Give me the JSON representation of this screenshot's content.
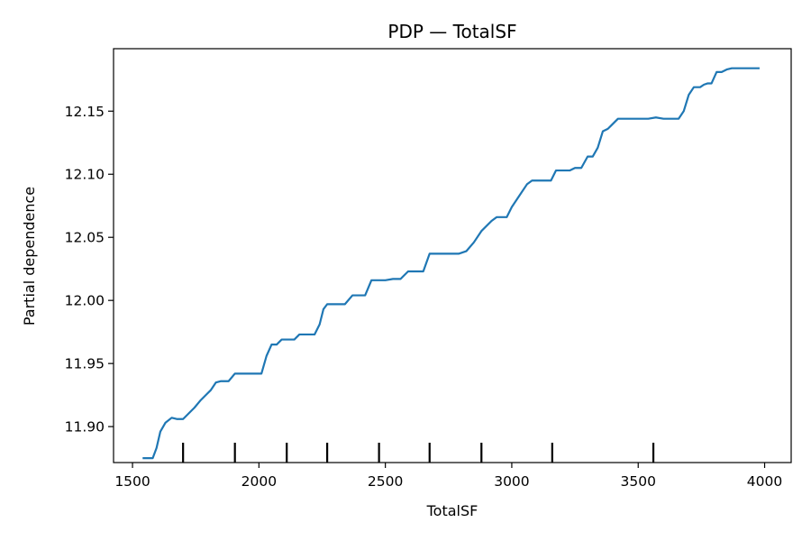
{
  "chart_data": {
    "type": "line",
    "title": "PDP — TotalSF",
    "xlabel": "TotalSF",
    "ylabel": "Partial dependence",
    "xlim": [
      1425,
      4105
    ],
    "ylim": [
      11.8715,
      12.1995
    ],
    "xticks": [
      1500,
      2000,
      2500,
      3000,
      3500,
      4000
    ],
    "xtick_labels": [
      "1500",
      "2000",
      "2500",
      "3000",
      "3500",
      "4000"
    ],
    "yticks": [
      11.9,
      11.95,
      12.0,
      12.05,
      12.1,
      12.15
    ],
    "ytick_labels": [
      "11.90",
      "11.95",
      "12.00",
      "12.05",
      "12.10",
      "12.15"
    ],
    "grid": false,
    "line_color": "#1f77b4",
    "series": [
      {
        "x": [
          1540,
          1560,
          1580,
          1595,
          1610,
          1630,
          1655,
          1675,
          1700,
          1720,
          1745,
          1770,
          1790,
          1810,
          1830,
          1850,
          1870,
          1880,
          1905,
          1925,
          1950,
          1980,
          2010,
          2030,
          2050,
          2070,
          2090,
          2110,
          2140,
          2160,
          2180,
          2200,
          2220,
          2240,
          2255,
          2270,
          2290,
          2310,
          2340,
          2370,
          2390,
          2420,
          2445,
          2470,
          2500,
          2530,
          2560,
          2590,
          2620,
          2650,
          2675,
          2690,
          2700,
          2730,
          2760,
          2790,
          2820,
          2850,
          2880,
          2920,
          2940,
          2960,
          2980,
          3000,
          3030,
          3060,
          3080,
          3110,
          3140,
          3155,
          3175,
          3200,
          3230,
          3250,
          3275,
          3300,
          3320,
          3340,
          3360,
          3380,
          3395,
          3420,
          3450,
          3480,
          3510,
          3540,
          3570,
          3600,
          3630,
          3660,
          3680,
          3700,
          3720,
          3745,
          3760,
          3775,
          3790,
          3810,
          3830,
          3850,
          3870,
          3890,
          3910,
          3940,
          3970,
          3980
        ],
        "y": [
          11.875,
          11.875,
          11.875,
          11.883,
          11.896,
          11.903,
          11.907,
          11.906,
          11.906,
          11.91,
          11.915,
          11.921,
          11.925,
          11.929,
          11.935,
          11.936,
          11.936,
          11.936,
          11.942,
          11.942,
          11.942,
          11.942,
          11.942,
          11.956,
          11.965,
          11.965,
          11.969,
          11.969,
          11.969,
          11.973,
          11.973,
          11.973,
          11.973,
          11.981,
          11.993,
          11.997,
          11.997,
          11.997,
          11.997,
          12.004,
          12.004,
          12.004,
          12.016,
          12.016,
          12.016,
          12.017,
          12.017,
          12.023,
          12.023,
          12.023,
          12.037,
          12.037,
          12.037,
          12.037,
          12.037,
          12.037,
          12.039,
          12.046,
          12.055,
          12.063,
          12.066,
          12.066,
          12.066,
          12.074,
          12.083,
          12.092,
          12.095,
          12.095,
          12.095,
          12.095,
          12.103,
          12.103,
          12.103,
          12.105,
          12.105,
          12.114,
          12.114,
          12.121,
          12.134,
          12.136,
          12.139,
          12.144,
          12.144,
          12.144,
          12.144,
          12.144,
          12.145,
          12.144,
          12.144,
          12.144,
          12.15,
          12.163,
          12.169,
          12.169,
          12.171,
          12.172,
          12.172,
          12.181,
          12.181,
          12.183,
          12.184,
          12.184,
          12.184,
          12.184,
          12.184,
          12.184
        ]
      }
    ],
    "rug_deciles": [
      1700,
      1905,
      2110,
      2270,
      2475,
      2675,
      2880,
      3160,
      3560
    ]
  }
}
